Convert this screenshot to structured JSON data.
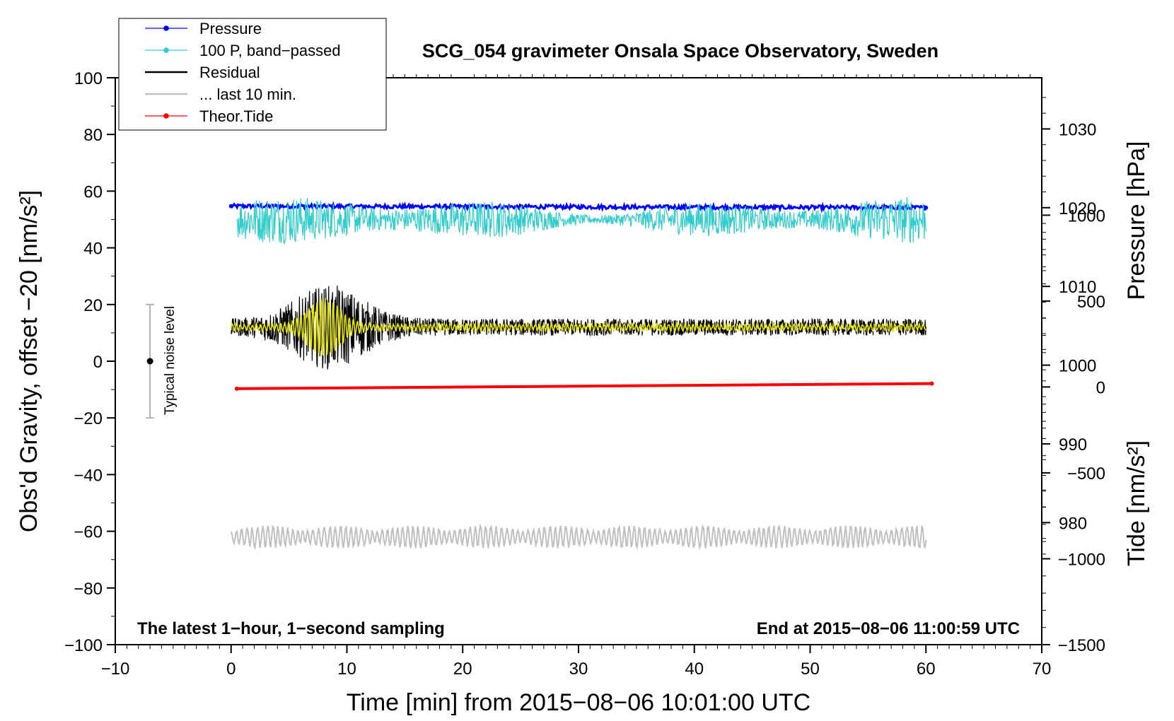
{
  "chart_data": {
    "type": "line",
    "title": "SCG_054 gravimeter Onsala Space Observatory, Sweden",
    "xlabel": "Time [min] from 2015−08−06 10:01:00 UTC",
    "ylabel_left": "Obs'd Gravity, offset −20 [nm/s²]",
    "ylabel_right_pressure": "Pressure [hPa]",
    "ylabel_right_tide": "Tide [nm/s²]",
    "xlim": [
      -10,
      70
    ],
    "ylim": [
      -100,
      100
    ],
    "pressure_axis_lim": [
      964.5,
      1036.5
    ],
    "tide_axis_lim": [
      -1500,
      1800
    ],
    "x_ticks": [
      -10,
      0,
      10,
      20,
      30,
      40,
      50,
      60,
      70
    ],
    "x_tick_labels": [
      "−10",
      "0",
      "10",
      "20",
      "30",
      "40",
      "50",
      "60",
      "70"
    ],
    "y_ticks": [
      -100,
      -80,
      -60,
      -40,
      -20,
      0,
      20,
      40,
      60,
      80,
      100
    ],
    "y_tick_labels": [
      "−100",
      "−80",
      "−60",
      "−40",
      "−20",
      "0",
      "20",
      "40",
      "60",
      "80",
      "100"
    ],
    "pressure_ticks": [
      980,
      990,
      1000,
      1010,
      1020,
      1030
    ],
    "pressure_tick_labels": [
      "980",
      "990",
      "1000",
      "1010",
      "1020",
      "1030"
    ],
    "tide_ticks": [
      -1500,
      -1000,
      -500,
      0,
      500,
      1000
    ],
    "tide_tick_labels": [
      "−1500",
      "−1000",
      "−500",
      "0",
      "500",
      "1000"
    ],
    "legend": [
      {
        "label": "Pressure",
        "color": "#0000ff",
        "marker": true
      },
      {
        "label": "100 P, band−passed",
        "color": "#33cccc",
        "marker": true
      },
      {
        "label": "Residual",
        "color": "#000000",
        "marker": false
      },
      {
        "label": "... last 10 min.",
        "color": "#c0c0c0",
        "marker": false
      },
      {
        "label": "Theor.Tide",
        "color": "#ff0000",
        "marker": true
      }
    ],
    "legend_position": "top-left",
    "annotations": {
      "bottom_left": "The latest 1−hour, 1−second sampling",
      "bottom_right": "End at 2015−08−06 11:00:59 UTC",
      "noise": "Typical noise level"
    },
    "noise_bar": {
      "x": -7,
      "center": 0,
      "low": -20,
      "high": 20
    },
    "series": [
      {
        "name": "Pressure",
        "color": "#0000ff",
        "x_range": [
          0,
          60
        ],
        "level_hpa": 1020.2,
        "end_level_hpa": 1020.0,
        "noise_amplitude_hpa": 0.25
      },
      {
        "name": "100 P, band−passed",
        "color": "#33cccc",
        "x_range": [
          0.5,
          60
        ],
        "level": 50,
        "noise_amplitude": 5
      },
      {
        "name": "Residual",
        "color": "#000000",
        "x_range": [
          0,
          60
        ],
        "level": 12,
        "noise_amplitude": 3,
        "burst_center_min": 8.5,
        "burst_width_min": 4,
        "burst_amplitude": 12
      },
      {
        "name": "Residual smoothed",
        "color": "#e6e600",
        "x_range": [
          0,
          60
        ],
        "level": 12,
        "noise_amplitude": 1,
        "burst_center_min": 8,
        "burst_width_min": 2,
        "burst_amplitude": 9
      },
      {
        "name": "... last 10 min.",
        "color": "#c0c0c0",
        "x_range": [
          0,
          60
        ],
        "level": -62,
        "noise_amplitude": 4
      },
      {
        "name": "Theor.Tide",
        "color": "#ff0000",
        "x_range": [
          0.5,
          60.5
        ],
        "tide_start": -10,
        "tide_end": 20
      }
    ]
  }
}
